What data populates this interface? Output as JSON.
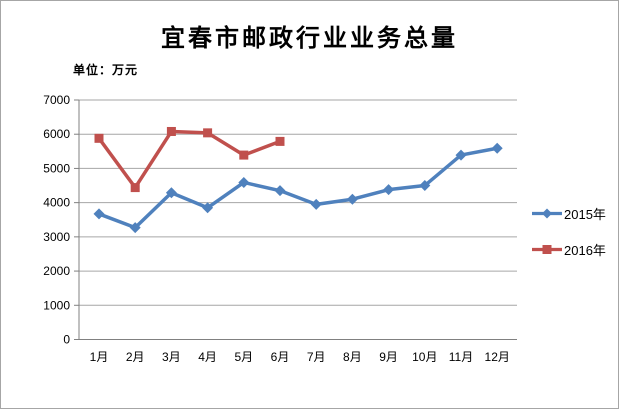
{
  "window": {
    "background": "#ffffff",
    "border_color": "#a6a6a6"
  },
  "chart_data": {
    "type": "line",
    "title": "宜春市邮政行业业务总量",
    "unit_label": "单位：万元",
    "categories": [
      "1月",
      "2月",
      "3月",
      "4月",
      "5月",
      "6月",
      "7月",
      "8月",
      "9月",
      "10月",
      "11月",
      "12月"
    ],
    "series": [
      {
        "name": "2015年",
        "color": "#4f81bd",
        "marker": "diamond",
        "values": [
          3670,
          3270,
          4290,
          3850,
          4590,
          4350,
          3950,
          4100,
          4380,
          4500,
          5390,
          5590
        ]
      },
      {
        "name": "2016年",
        "color": "#c0504d",
        "marker": "square",
        "values": [
          5880,
          4440,
          6080,
          6040,
          5390,
          5790
        ]
      }
    ],
    "xlabel": "",
    "ylabel": "",
    "ylim": [
      0,
      7000
    ],
    "ytick_step": 1000,
    "grid": true,
    "legend_position": "right",
    "axis_color": "#808080",
    "gridline_color": "#a6a6a6",
    "tick_label_color": "#000000"
  }
}
